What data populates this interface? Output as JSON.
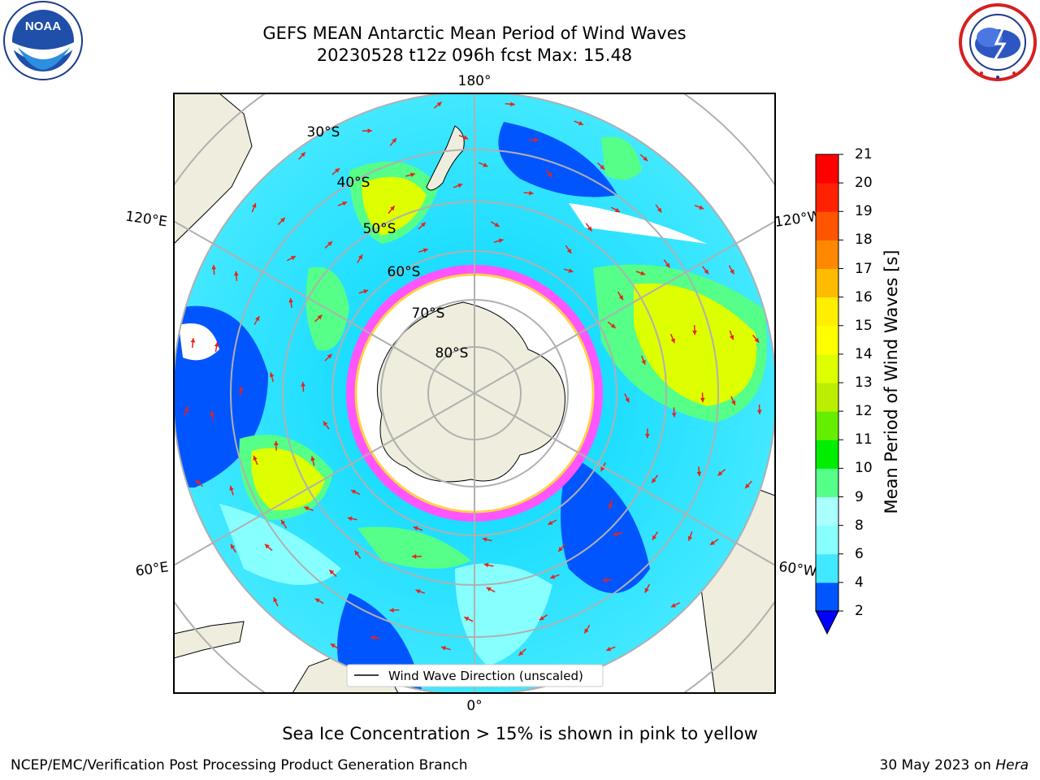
{
  "header": {
    "title_line1": "GEFS MEAN Antarctic Mean Period of Wind Waves",
    "title_line2": "20230528 t12z 096h fcst   Max: 15.48"
  },
  "map": {
    "projection": "south-polar-stereographic",
    "lon_labels": {
      "top": "180°",
      "bottom": "0°",
      "left_upper": "120°E",
      "left_lower": "60°E",
      "right_upper": "120°W",
      "right_lower": "60°W"
    },
    "lat_labels": [
      "30°S",
      "40°S",
      "50°S",
      "60°S",
      "70°S",
      "80°S"
    ],
    "legend_label": "Wind Wave Direction (unscaled)",
    "land_color": "#efeddd",
    "arrow_color": "#e8231a",
    "ice_colors": [
      "#ff55ff",
      "#ffd24a"
    ]
  },
  "colorbar": {
    "label": "Mean Period of Wind Waves [s]",
    "ticks": [
      "2",
      "4",
      "6",
      "8",
      "9",
      "10",
      "11",
      "12",
      "13",
      "14",
      "15",
      "16",
      "17",
      "18",
      "19",
      "20",
      "21"
    ],
    "colors": [
      "#0055ff",
      "#00d5ff",
      "#42e8ff",
      "#88ffff",
      "#aaffff",
      "#55ff88",
      "#00ee00",
      "#66ee00",
      "#bbee00",
      "#ddff00",
      "#ffff00",
      "#ffee00",
      "#ffbb00",
      "#ff8800",
      "#ff5500",
      "#ff2200",
      "#ff0000"
    ],
    "under_color": "#0000ff"
  },
  "caption": "Sea Ice Concentration > 15% is shown in pink to yellow",
  "footer": {
    "left": "NCEP/EMC/Verification Post Processing Product Generation Branch",
    "right_prefix": "30 May 2023 on ",
    "right_machine": "Hera"
  },
  "logos": {
    "noaa_text": "NOAA"
  }
}
